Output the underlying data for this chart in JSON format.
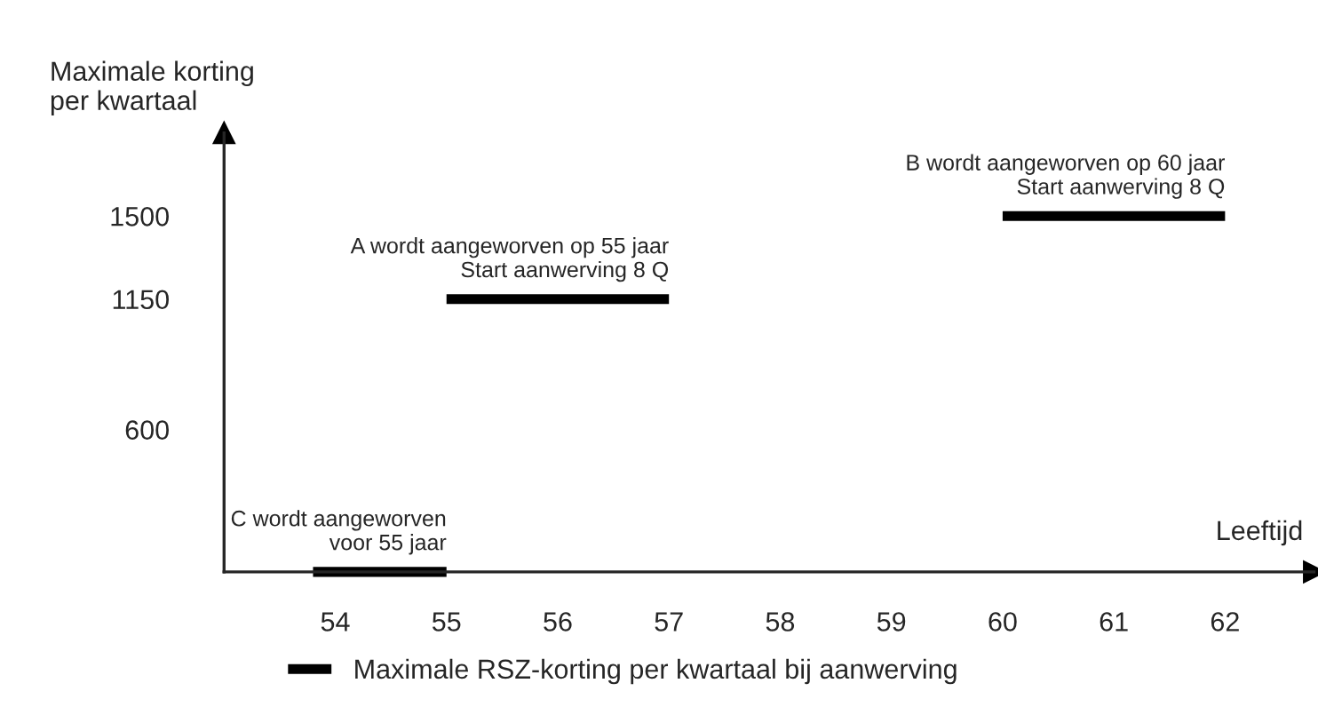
{
  "chart_data": {
    "type": "line",
    "ylabel": "Maximale korting\nper kwartaal",
    "xlabel": "Leeftijd",
    "series": [
      {
        "name": "Maximale RSZ-korting per kwartaal bij aanwerving",
        "color": "#000000",
        "x": [
          53.8,
          55
        ],
        "values": [
          0,
          0
        ]
      },
      {
        "color": "#000000",
        "x": [
          55,
          57
        ],
        "values": [
          1150,
          1150
        ]
      },
      {
        "color": "#000000",
        "x": [
          60,
          62
        ],
        "values": [
          1500,
          1500
        ]
      }
    ],
    "xlim": [
      53,
      62.8
    ],
    "xticks": [
      54,
      55,
      56,
      57,
      58,
      59,
      60,
      61,
      62
    ],
    "ylim": [
      0,
      1850
    ],
    "yticks": [
      600,
      1150,
      1500
    ],
    "annotations": [
      {
        "text": "C wordt aangeworven\nvoor 55 jaar",
        "x": 55,
        "y": 0
      },
      {
        "text": "A wordt aangeworven op 55 jaar\nStart aanwerving 8 Q",
        "x": 57,
        "y": 1150
      },
      {
        "text": "B wordt aangeworven op 60 jaar\nStart aanwerving 8 Q",
        "x": 62,
        "y": 1500
      }
    ],
    "grid": false,
    "legend": "bottom",
    "marker": "none",
    "line_style": "solid"
  }
}
